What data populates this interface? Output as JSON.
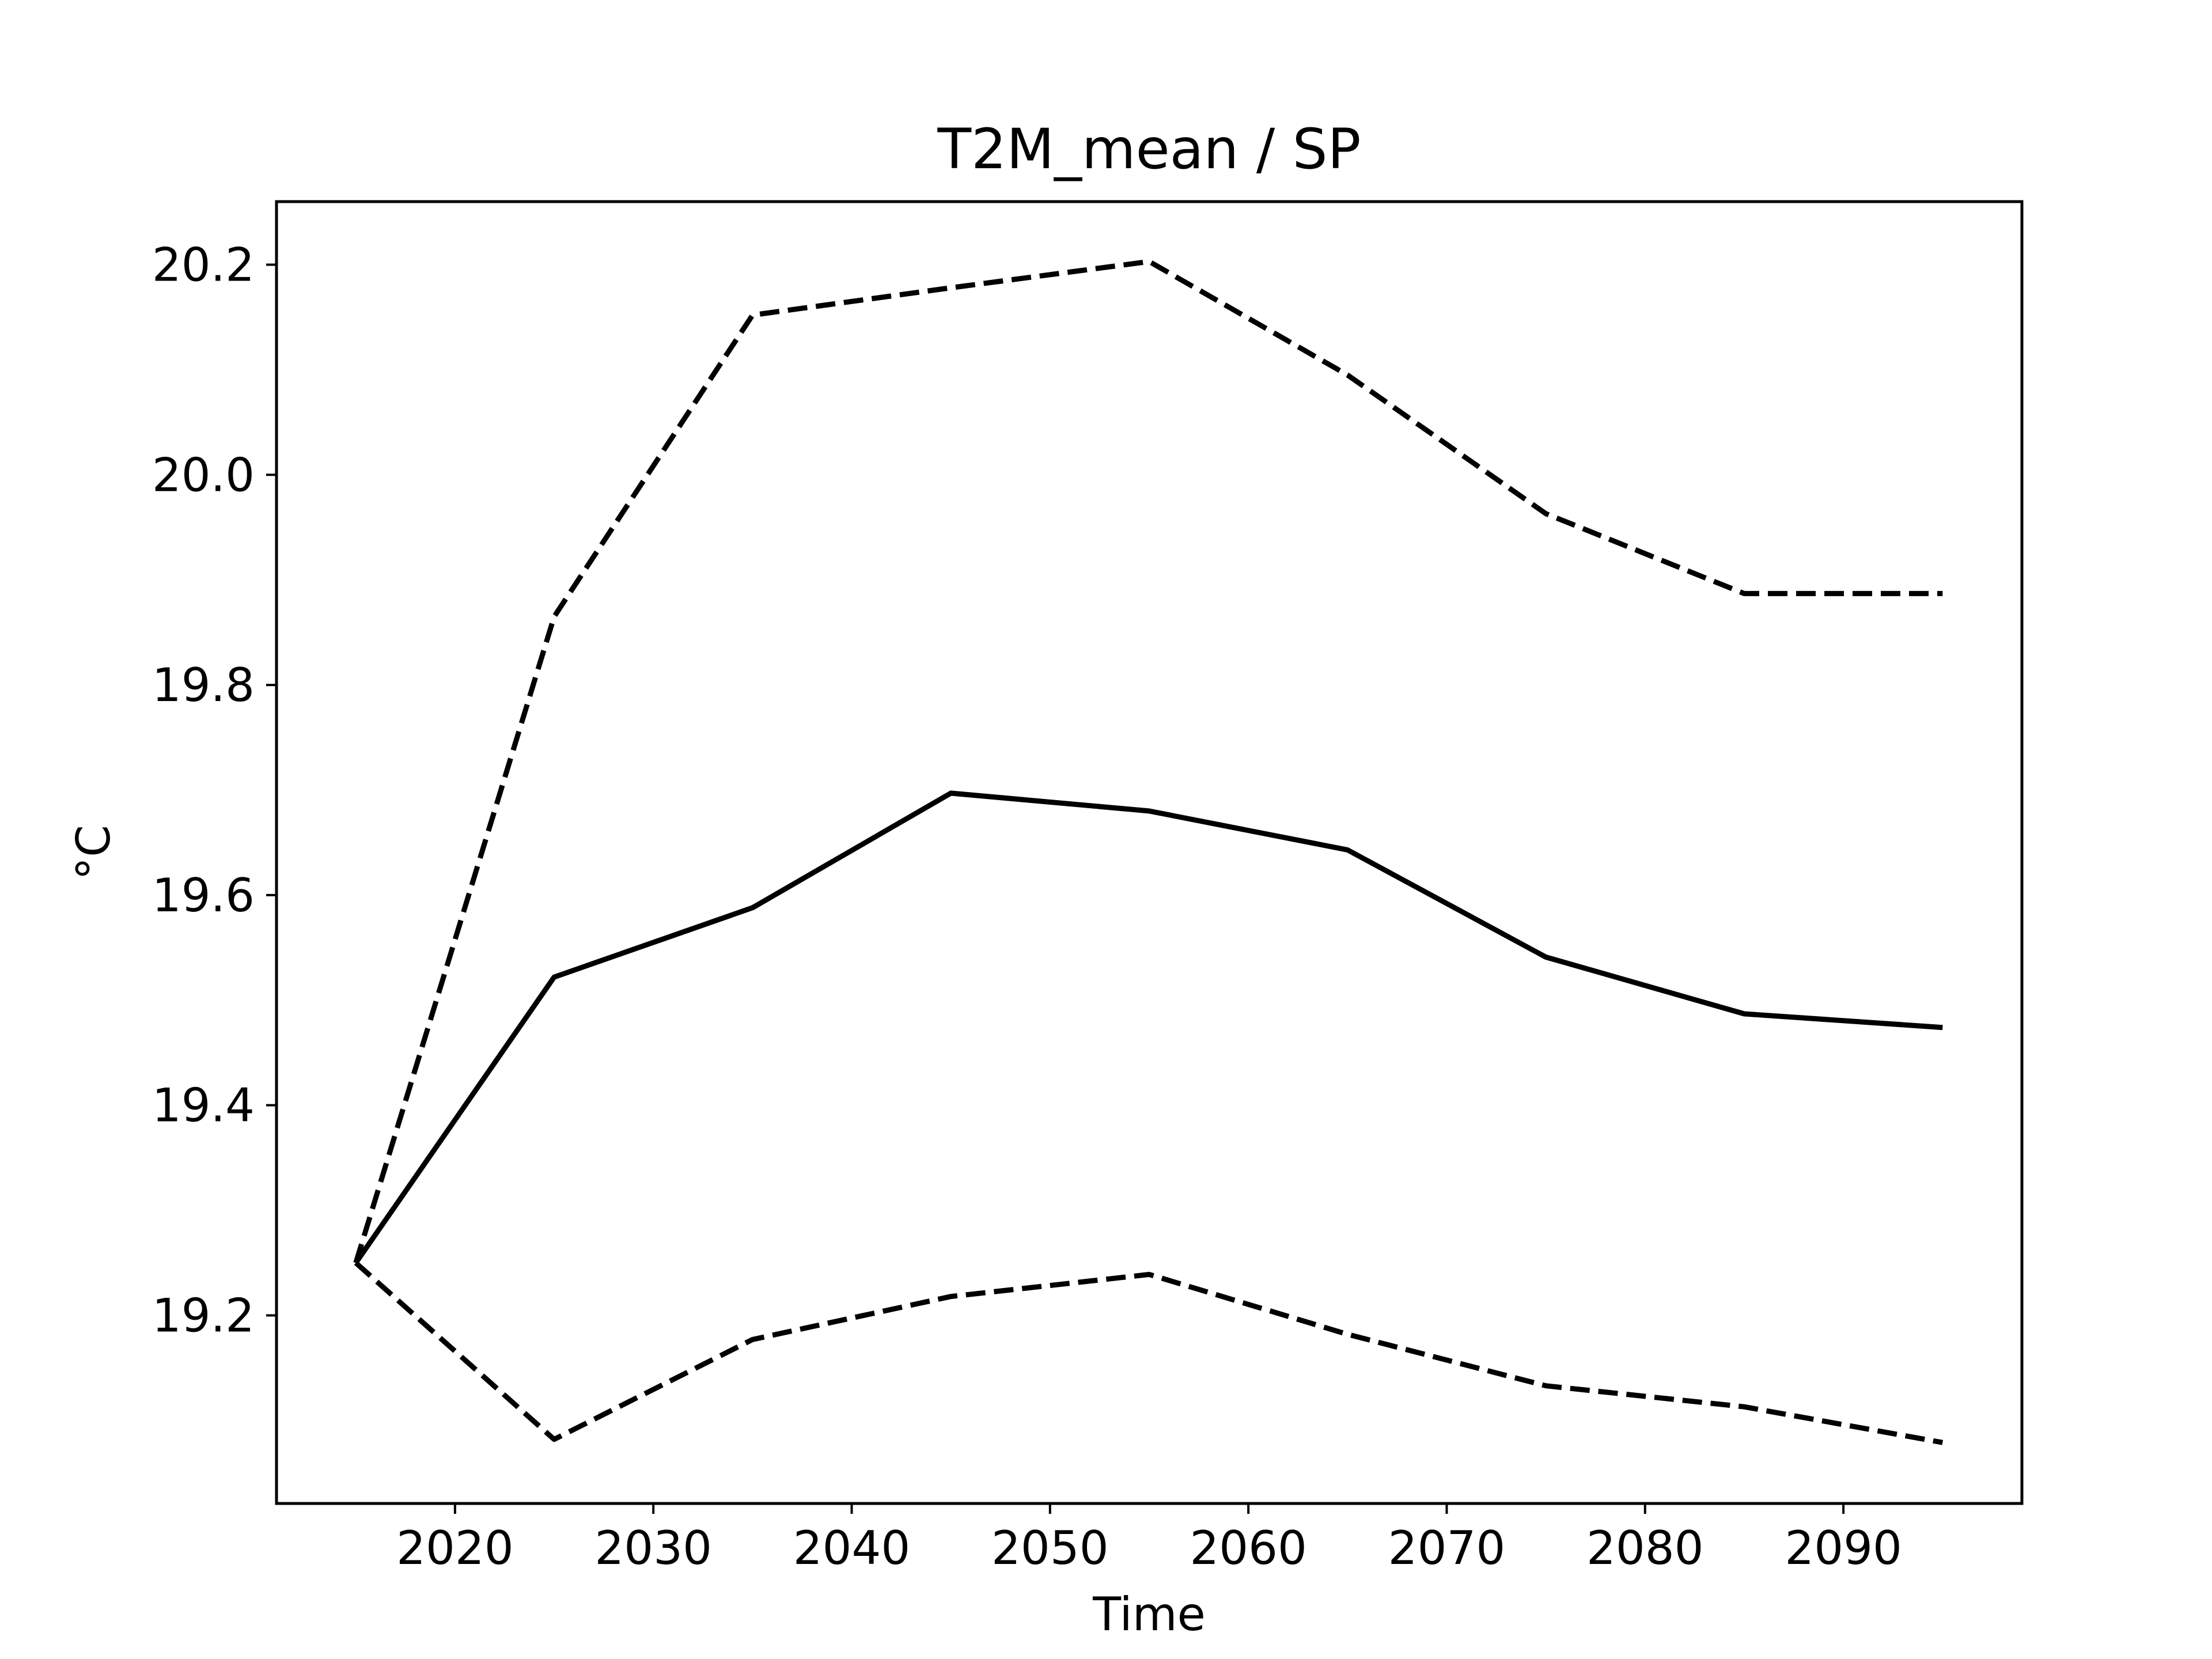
{
  "chart_data": {
    "type": "line",
    "title": "T2M_mean / SP",
    "xlabel": "Time",
    "ylabel": "°C",
    "xlim": [
      2011,
      2099
    ],
    "ylim": [
      19.021,
      20.26
    ],
    "x_ticks": [
      2020,
      2030,
      2040,
      2050,
      2060,
      2070,
      2080,
      2090
    ],
    "y_ticks": [
      19.2,
      19.4,
      19.6,
      19.8,
      20.0,
      20.2
    ],
    "y_tick_labels": [
      "19.2",
      "19.4",
      "19.6",
      "19.8",
      "20.0",
      "20.2"
    ],
    "x": [
      2015,
      2025,
      2035,
      2045,
      2055,
      2065,
      2075,
      2085,
      2095
    ],
    "series": [
      {
        "style": "dashed",
        "color": "#000000",
        "values": [
          19.25,
          19.865,
          20.152,
          20.178,
          20.203,
          20.095,
          19.963,
          19.887,
          19.887
        ]
      },
      {
        "style": "solid",
        "color": "#000000",
        "values": [
          19.25,
          19.522,
          19.588,
          19.697,
          19.68,
          19.643,
          19.541,
          19.487,
          19.474
        ]
      },
      {
        "style": "dashed",
        "color": "#000000",
        "values": [
          19.25,
          19.082,
          19.177,
          19.218,
          19.239,
          19.182,
          19.133,
          19.113,
          19.079
        ]
      }
    ],
    "grid": false,
    "legend": "none"
  }
}
